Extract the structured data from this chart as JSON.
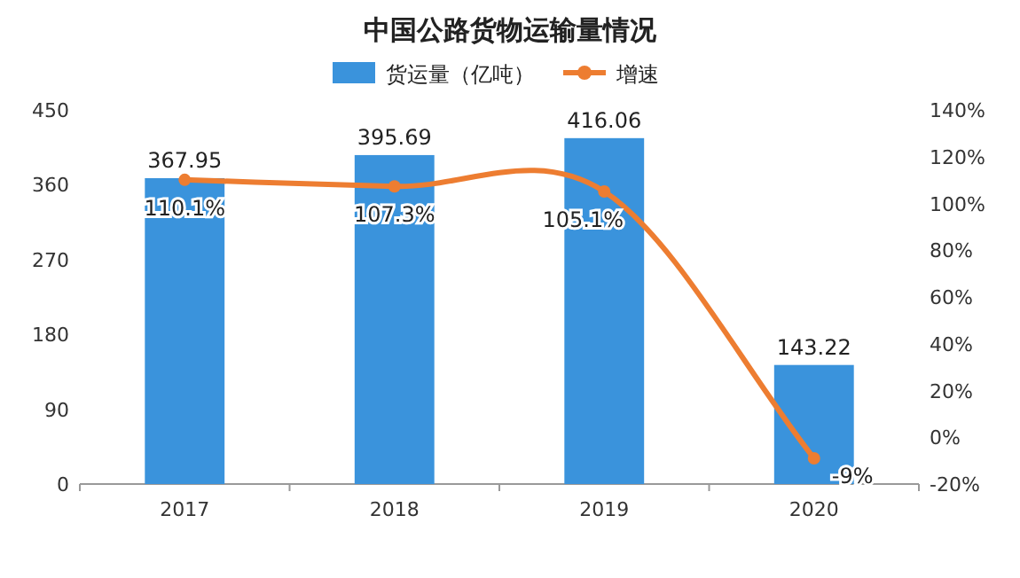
{
  "chart_data": {
    "type": "bar",
    "title": "中国公路货物运输量情况",
    "categories": [
      "2017",
      "2018",
      "2019",
      "2020"
    ],
    "series": [
      {
        "name": "货运量（亿吨）",
        "color": "#3a93dc",
        "values": [
          367.95,
          395.69,
          416.06,
          143.22
        ],
        "value_labels": [
          "367.95",
          "395.69",
          "416.06",
          "143.22"
        ]
      },
      {
        "name": "增速",
        "type": "line",
        "axis": "y2",
        "color": "#ed7d31",
        "marker": "circle",
        "values": [
          110.1,
          107.3,
          105.1,
          -9
        ],
        "value_labels": [
          "110.1%",
          "107.3%",
          "105.1%",
          "-9%"
        ]
      }
    ],
    "ylim": [
      0,
      450
    ],
    "yticks": [
      0,
      90,
      180,
      270,
      360,
      450
    ],
    "y2lim": [
      -20,
      140
    ],
    "y2ticks": [
      {
        "value": -20,
        "label": "-20%"
      },
      {
        "value": 0,
        "label": "0%"
      },
      {
        "value": 20,
        "label": "20%"
      },
      {
        "value": 40,
        "label": "40%"
      },
      {
        "value": 60,
        "label": "60%"
      },
      {
        "value": 80,
        "label": "80%"
      },
      {
        "value": 100,
        "label": "100%"
      },
      {
        "value": 120,
        "label": "120%"
      },
      {
        "value": 140,
        "label": "140%"
      }
    ],
    "legend": "top"
  }
}
